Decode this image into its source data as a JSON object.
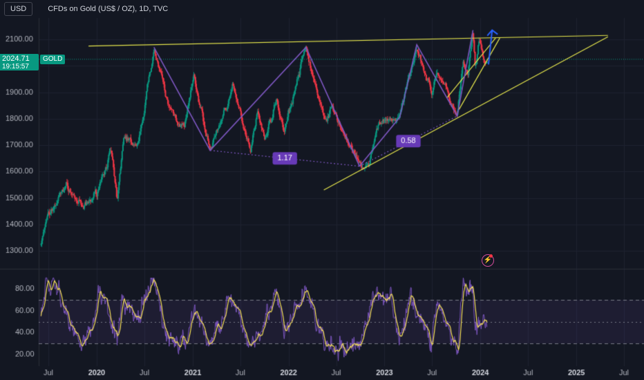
{
  "header": {
    "currency": "USD",
    "symbol_title": "CFDs on Gold (US$ / OZ), 1D, TVC"
  },
  "price_badge": {
    "price": "2024.71",
    "countdown": "19:15:57",
    "ticker": "GOLD"
  },
  "colors": {
    "background": "#131722",
    "bull": "#089981",
    "bear": "#f23645",
    "pattern": "#7e57c2",
    "trendline": "#e8e84d",
    "rsi_line": "#7e57c2",
    "rsi_ma": "#f7e15a",
    "arrow": "#2962ff"
  },
  "icons": {
    "alert": "lightning-alert-icon"
  },
  "chart_data": [
    {
      "type": "candlestick",
      "y_ticks": [
        "1300.00",
        "1400.00",
        "1500.00",
        "1600.00",
        "1700.00",
        "1800.00",
        "1900.00",
        "2000.00",
        "2100.00"
      ],
      "ylim": [
        1270,
        2150
      ],
      "x_ticks": [
        "Jul",
        "2020",
        "Jul",
        "2021",
        "Jul",
        "2022",
        "Jul",
        "2023",
        "Jul",
        "2024",
        "Jul",
        "2025",
        "Jul"
      ],
      "x_tick_dates": [
        "2019-07-01",
        "2020-01-01",
        "2020-07-01",
        "2021-01-01",
        "2021-07-01",
        "2022-01-01",
        "2022-07-01",
        "2023-01-01",
        "2023-07-01",
        "2024-01-01",
        "2024-07-01",
        "2025-01-01",
        "2025-07-01"
      ],
      "price_path": [
        {
          "date": "2019-06-03",
          "price": 1330
        },
        {
          "date": "2019-06-25",
          "price": 1415
        },
        {
          "date": "2019-08-15",
          "price": 1510
        },
        {
          "date": "2019-09-05",
          "price": 1550
        },
        {
          "date": "2019-11-12",
          "price": 1455
        },
        {
          "date": "2019-12-31",
          "price": 1520
        },
        {
          "date": "2020-02-24",
          "price": 1680
        },
        {
          "date": "2020-03-19",
          "price": 1475
        },
        {
          "date": "2020-04-14",
          "price": 1740
        },
        {
          "date": "2020-06-05",
          "price": 1685
        },
        {
          "date": "2020-08-06",
          "price": 2070
        },
        {
          "date": "2020-09-28",
          "price": 1850
        },
        {
          "date": "2020-11-30",
          "price": 1765
        },
        {
          "date": "2021-01-05",
          "price": 1955
        },
        {
          "date": "2021-03-08",
          "price": 1680
        },
        {
          "date": "2021-06-01",
          "price": 1915
        },
        {
          "date": "2021-08-09",
          "price": 1690
        },
        {
          "date": "2021-09-03",
          "price": 1835
        },
        {
          "date": "2021-09-30",
          "price": 1720
        },
        {
          "date": "2021-11-16",
          "price": 1870
        },
        {
          "date": "2021-12-15",
          "price": 1755
        },
        {
          "date": "2022-03-08",
          "price": 2070
        },
        {
          "date": "2022-05-16",
          "price": 1790
        },
        {
          "date": "2022-06-14",
          "price": 1840
        },
        {
          "date": "2022-09-28",
          "price": 1620
        },
        {
          "date": "2022-11-03",
          "price": 1620
        },
        {
          "date": "2022-12-12",
          "price": 1790
        },
        {
          "date": "2023-02-28",
          "price": 1805
        },
        {
          "date": "2023-05-04",
          "price": 2080
        },
        {
          "date": "2023-06-29",
          "price": 1895
        },
        {
          "date": "2023-07-20",
          "price": 1985
        },
        {
          "date": "2023-10-05",
          "price": 1810
        },
        {
          "date": "2023-10-27",
          "price": 2005
        },
        {
          "date": "2023-11-15",
          "price": 1960
        },
        {
          "date": "2023-12-04",
          "price": 2135
        },
        {
          "date": "2023-12-13",
          "price": 1975
        },
        {
          "date": "2023-12-28",
          "price": 2085
        },
        {
          "date": "2024-01-17",
          "price": 2005
        },
        {
          "date": "2024-01-26",
          "price": 2024.71
        }
      ],
      "annotations": {
        "pattern_lines": [
          [
            {
              "date": "2020-08-06",
              "price": 2070
            },
            {
              "date": "2021-03-08",
              "price": 1680
            },
            {
              "date": "2022-03-08",
              "price": 2070
            },
            {
              "date": "2022-09-28",
              "price": 1620
            }
          ],
          [
            {
              "date": "2022-09-28",
              "price": 1620
            },
            {
              "date": "2023-02-28",
              "price": 1805
            },
            {
              "date": "2023-05-04",
              "price": 2080
            },
            {
              "date": "2023-10-05",
              "price": 1810
            },
            {
              "date": "2023-12-04",
              "price": 2135
            }
          ]
        ],
        "trendlines": [
          [
            {
              "date": "2019-12-01",
              "price": 2075
            },
            {
              "date": "2025-05-01",
              "price": 2115
            }
          ],
          [
            {
              "date": "2022-05-15",
              "price": 1530
            },
            {
              "date": "2025-05-01",
              "price": 2110
            }
          ],
          [
            {
              "date": "2023-08-28",
              "price": 1880
            },
            {
              "date": "2024-02-28",
              "price": 2105
            }
          ],
          [
            {
              "date": "2023-10-12",
              "price": 1835
            },
            {
              "date": "2024-03-15",
              "price": 2105
            }
          ]
        ],
        "projection_arrow": [
          {
            "date": "2024-02-01",
            "price": 2005
          },
          {
            "date": "2024-02-15",
            "price": 2135
          }
        ],
        "dotted_measures": [
          {
            "from": {
              "date": "2021-03-08",
              "price": 1680
            },
            "to": {
              "date": "2022-09-28",
              "price": 1620
            },
            "label": "1.17"
          },
          {
            "from": {
              "date": "2022-09-28",
              "price": 1620
            },
            "to": {
              "date": "2023-10-05",
              "price": 1810
            },
            "label": "0.58"
          }
        ]
      }
    },
    {
      "type": "line",
      "title": "",
      "y_ticks": [
        "20.00",
        "40.00",
        "60.00",
        "80.00"
      ],
      "ylim": [
        12,
        92
      ],
      "bands": [
        30,
        50,
        70
      ],
      "rsi_path": [
        {
          "date": "2019-06-03",
          "value": 52
        },
        {
          "date": "2019-06-20",
          "value": 86
        },
        {
          "date": "2019-08-10",
          "value": 80
        },
        {
          "date": "2019-09-15",
          "value": 50
        },
        {
          "date": "2019-10-20",
          "value": 35
        },
        {
          "date": "2019-12-10",
          "value": 38
        },
        {
          "date": "2020-01-08",
          "value": 78
        },
        {
          "date": "2020-02-10",
          "value": 68
        },
        {
          "date": "2020-03-19",
          "value": 30
        },
        {
          "date": "2020-04-10",
          "value": 72
        },
        {
          "date": "2020-06-01",
          "value": 50
        },
        {
          "date": "2020-08-06",
          "value": 88
        },
        {
          "date": "2020-09-25",
          "value": 35
        },
        {
          "date": "2020-11-30",
          "value": 28
        },
        {
          "date": "2021-01-05",
          "value": 62
        },
        {
          "date": "2021-03-08",
          "value": 28
        },
        {
          "date": "2021-05-20",
          "value": 72
        },
        {
          "date": "2021-08-09",
          "value": 28
        },
        {
          "date": "2021-09-20",
          "value": 48
        },
        {
          "date": "2021-11-16",
          "value": 74
        },
        {
          "date": "2021-12-15",
          "value": 38
        },
        {
          "date": "2022-03-08",
          "value": 80
        },
        {
          "date": "2022-05-16",
          "value": 28
        },
        {
          "date": "2022-07-20",
          "value": 24
        },
        {
          "date": "2022-09-28",
          "value": 30
        },
        {
          "date": "2022-11-20",
          "value": 72
        },
        {
          "date": "2023-01-25",
          "value": 76
        },
        {
          "date": "2023-02-28",
          "value": 30
        },
        {
          "date": "2023-04-12",
          "value": 74
        },
        {
          "date": "2023-06-29",
          "value": 30
        },
        {
          "date": "2023-07-20",
          "value": 70
        },
        {
          "date": "2023-10-05",
          "value": 20
        },
        {
          "date": "2023-10-27",
          "value": 80
        },
        {
          "date": "2023-12-04",
          "value": 75
        },
        {
          "date": "2023-12-13",
          "value": 42
        },
        {
          "date": "2024-01-26",
          "value": 50
        }
      ]
    }
  ]
}
